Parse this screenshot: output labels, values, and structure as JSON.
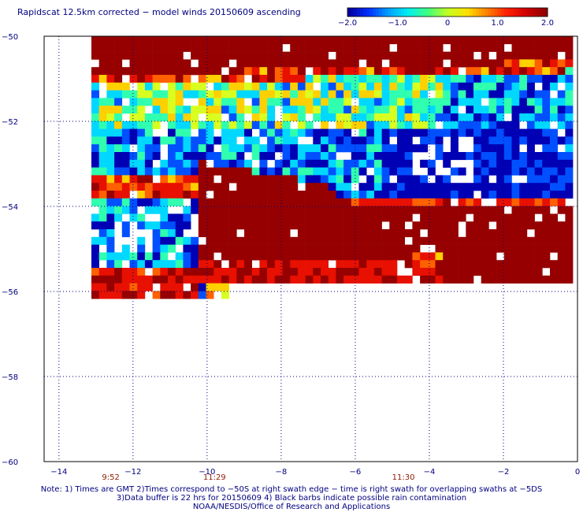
{
  "title": "Rapidscat 12.5km corrected − model winds 20150609 ascending",
  "colorbar": {
    "tick_labels": [
      "−2.0",
      "−1.0",
      "0",
      "1.0",
      "2.0"
    ],
    "tick_values": [
      -2.0,
      -1.0,
      0,
      1.0,
      2.0
    ],
    "colors": [
      "#0000b4",
      "#0050ff",
      "#00d8ff",
      "#30ffb0",
      "#d8ff20",
      "#ffd000",
      "#ff6000",
      "#e81000",
      "#960000"
    ]
  },
  "map": {
    "lon_ticks": [
      -14,
      -12,
      -10,
      -8,
      -6,
      -4,
      -2,
      0
    ],
    "lon_labels": [
      "−14",
      "−12",
      "−10",
      "−8",
      "−6",
      "−4",
      "−2",
      "0"
    ],
    "lat_ticks": [
      -50,
      -52,
      -54,
      -56,
      -58,
      -60
    ],
    "lat_labels": [
      "−50",
      "−52",
      "−54",
      "−56",
      "−58",
      "−60"
    ],
    "time_labels": [
      {
        "text": "9:52",
        "lon": -12.6
      },
      {
        "text": "11:29",
        "lon": -9.8
      },
      {
        "text": "11:30",
        "lon": -4.7
      }
    ]
  },
  "notes": [
    "Note: 1) Times are GMT 2)Times correspond to −50S at right swath edge − time is right swath for overlapping swaths at −5DS",
    "3)Data buffer is 22 hrs for 20150609 4) Black barbs indicate possible rain contamination",
    "NOAA/NESDIS/Office of Research and Applications"
  ]
}
